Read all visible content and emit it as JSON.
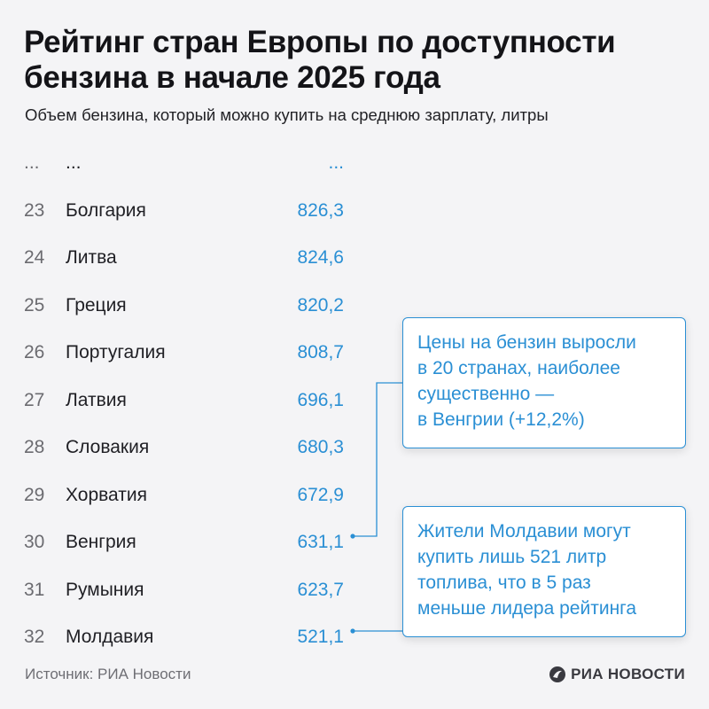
{
  "header": {
    "title": "Рейтинг стран Европы по доступности бензина в начале 2025 года",
    "subtitle": "Объем бензина, который можно купить на среднюю зарплату, литры"
  },
  "chart_data": {
    "type": "table",
    "title": "Рейтинг стран Европы по доступности бензина в начале 2025 года",
    "subtitle": "Объем бензина, который можно купить на среднюю зарплату, литры",
    "rows": [
      {
        "rank": "...",
        "country": "...",
        "value": "..."
      },
      {
        "rank": "23",
        "country": "Болгария",
        "value": "826,3"
      },
      {
        "rank": "24",
        "country": "Литва",
        "value": "824,6"
      },
      {
        "rank": "25",
        "country": "Греция",
        "value": "820,2"
      },
      {
        "rank": "26",
        "country": "Португалия",
        "value": "808,7"
      },
      {
        "rank": "27",
        "country": "Латвия",
        "value": "696,1"
      },
      {
        "rank": "28",
        "country": "Словакия",
        "value": "680,3"
      },
      {
        "rank": "29",
        "country": "Хорватия",
        "value": "672,9"
      },
      {
        "rank": "30",
        "country": "Венгрия",
        "value": "631,1"
      },
      {
        "rank": "31",
        "country": "Румыния",
        "value": "623,7"
      },
      {
        "rank": "32",
        "country": "Молдавия",
        "value": "521,1"
      }
    ],
    "annotations": [
      {
        "text": "Цены на бензин выросли в 20 странах, наиболее существенно — в Венгрии (+12,2%)",
        "target_country": "Венгрия"
      },
      {
        "text": "Жители Молдавии могут купить лишь 521 литр топлива, что в 5 раз меньше лидера рейтинга",
        "target_country": "Молдавия"
      }
    ]
  },
  "callouts": [
    {
      "lines": [
        "Цены на бензин выросли",
        "в 20 странах, наиболее",
        "существенно —",
        "в Венгрии (+12,2%)"
      ]
    },
    {
      "lines": [
        "Жители Молдавии могут",
        "купить лишь 521 литр",
        "топлива, что в 5 раз",
        "меньше лидера рейтинга"
      ]
    }
  ],
  "footer": {
    "source": "Источник: РИА Новости",
    "logo_text": "РИА НОВОСТИ"
  },
  "colors": {
    "accent": "#2a8fd4",
    "background": "#f4f4f6",
    "rank": "#6b6b70",
    "text": "#1f1f24"
  }
}
